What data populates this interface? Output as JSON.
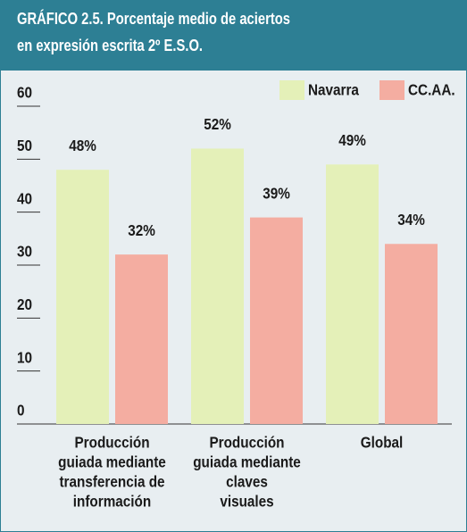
{
  "chart_data": {
    "type": "bar",
    "title": [
      "GRÁFICO 2.5. Porcentaje medio de aciertos",
      "en expresión escrita 2º E.S.O."
    ],
    "categories": [
      [
        "Producción",
        "guiada mediante",
        "transferencia de",
        "información"
      ],
      [
        "Producción",
        "guiada mediante",
        "claves",
        "visuales"
      ],
      [
        "Global"
      ]
    ],
    "series": [
      {
        "name": "Navarra",
        "color": "#e4f0b8",
        "values": [
          48,
          52,
          49
        ],
        "value_labels": [
          "48%",
          "52%",
          "49%"
        ]
      },
      {
        "name": "CC.AA.",
        "color": "#f4ada1",
        "values": [
          32,
          39,
          34
        ],
        "value_labels": [
          "32%",
          "39%",
          "34%"
        ]
      }
    ],
    "ylim": [
      0,
      60
    ],
    "yticks": [
      0,
      10,
      20,
      30,
      40,
      50,
      60
    ],
    "legend": "top-right"
  }
}
